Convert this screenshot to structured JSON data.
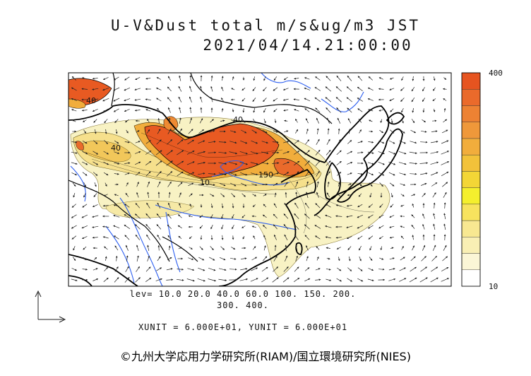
{
  "title": {
    "line1": "U-V&Dust total m/s&ug/m3 JST",
    "line2": "2021/04/14.21:00:00"
  },
  "contour_labels": [
    "40",
    "40",
    "10",
    "150",
    "40"
  ],
  "levels_line1": "lev= 10.0 20.0 40.0 60.0 100. 150. 200.",
  "levels_line2": "300. 400.",
  "units_text": "XUNIT = 6.000E+01, YUNIT = 6.000E+01",
  "copyright": "©九州大学応用力学研究所(RIAM)/国立環境研究所(NIES)",
  "colorbar": {
    "max_label": "400",
    "min_label": "10",
    "colors": [
      "#ffffff",
      "#fbf6d6",
      "#f9efb4",
      "#f8e891",
      "#f7e35e",
      "#f4ef2d",
      "#f3d636",
      "#f2c23a",
      "#f1ad3c",
      "#ef983a",
      "#ed8233",
      "#ea6a2b",
      "#e65420"
    ]
  },
  "colors": {
    "dust_low": "#f8f2c4",
    "dust_mid": "#f6e08c",
    "dust_high": "#ee8a32",
    "dust_max": "#e85a22",
    "coast": "#000000",
    "river": "#2d5ff0"
  },
  "icons": {
    "reference_vector": "reference-vector-arrow-icon"
  }
}
